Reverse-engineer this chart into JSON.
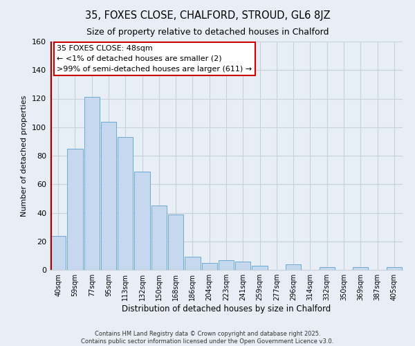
{
  "title": "35, FOXES CLOSE, CHALFORD, STROUD, GL6 8JZ",
  "subtitle": "Size of property relative to detached houses in Chalford",
  "xlabel": "Distribution of detached houses by size in Chalford",
  "ylabel": "Number of detached properties",
  "categories": [
    "40sqm",
    "59sqm",
    "77sqm",
    "95sqm",
    "113sqm",
    "132sqm",
    "150sqm",
    "168sqm",
    "186sqm",
    "204sqm",
    "223sqm",
    "241sqm",
    "259sqm",
    "277sqm",
    "296sqm",
    "314sqm",
    "332sqm",
    "350sqm",
    "369sqm",
    "387sqm",
    "405sqm"
  ],
  "values": [
    24,
    85,
    121,
    104,
    93,
    69,
    45,
    39,
    9,
    5,
    7,
    6,
    3,
    0,
    4,
    0,
    2,
    0,
    2,
    0,
    2
  ],
  "bar_color": "#c5d8ed",
  "bar_edge_color": "#6aaad4",
  "highlight_color": "#aa0000",
  "background_color": "#e8eef5",
  "annotation_title": "35 FOXES CLOSE: 48sqm",
  "annotation_line1": "← <1% of detached houses are smaller (2)",
  "annotation_line2": ">99% of semi-detached houses are larger (611) →",
  "annotation_box_color": "#ffffff",
  "annotation_border_color": "#cc0000",
  "ylim": [
    0,
    160
  ],
  "yticks": [
    0,
    20,
    40,
    60,
    80,
    100,
    120,
    140,
    160
  ],
  "footer_line1": "Contains HM Land Registry data © Crown copyright and database right 2025.",
  "footer_line2": "Contains public sector information licensed under the Open Government Licence v3.0."
}
